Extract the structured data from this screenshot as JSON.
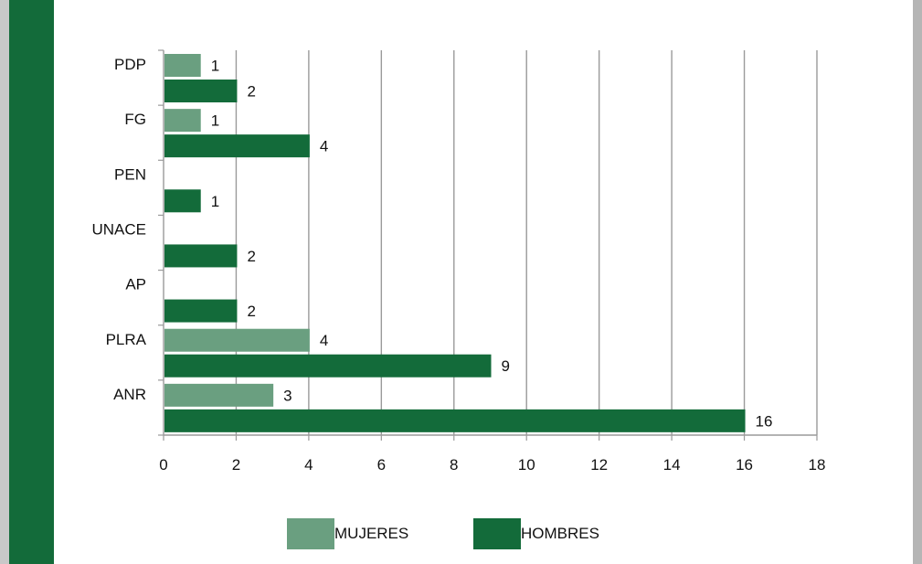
{
  "chart_data": {
    "type": "bar",
    "orientation": "horizontal",
    "categories": [
      "PDP",
      "FG",
      "PEN",
      "UNACE",
      "AP",
      "PLRA",
      "ANR"
    ],
    "series": [
      {
        "name": "MUJERES",
        "values": [
          1,
          1,
          null,
          null,
          null,
          4,
          3
        ]
      },
      {
        "name": "HOMBRES",
        "values": [
          2,
          4,
          1,
          2,
          2,
          9,
          16
        ]
      }
    ],
    "xlim": [
      0,
      18
    ],
    "xticks": [
      0,
      2,
      4,
      6,
      8,
      10,
      12,
      14,
      16,
      18
    ],
    "grid": "vertical",
    "legend": "bottom",
    "colors": {
      "MUJERES": "#6a9f80",
      "HOMBRES": "#136b3a"
    }
  }
}
